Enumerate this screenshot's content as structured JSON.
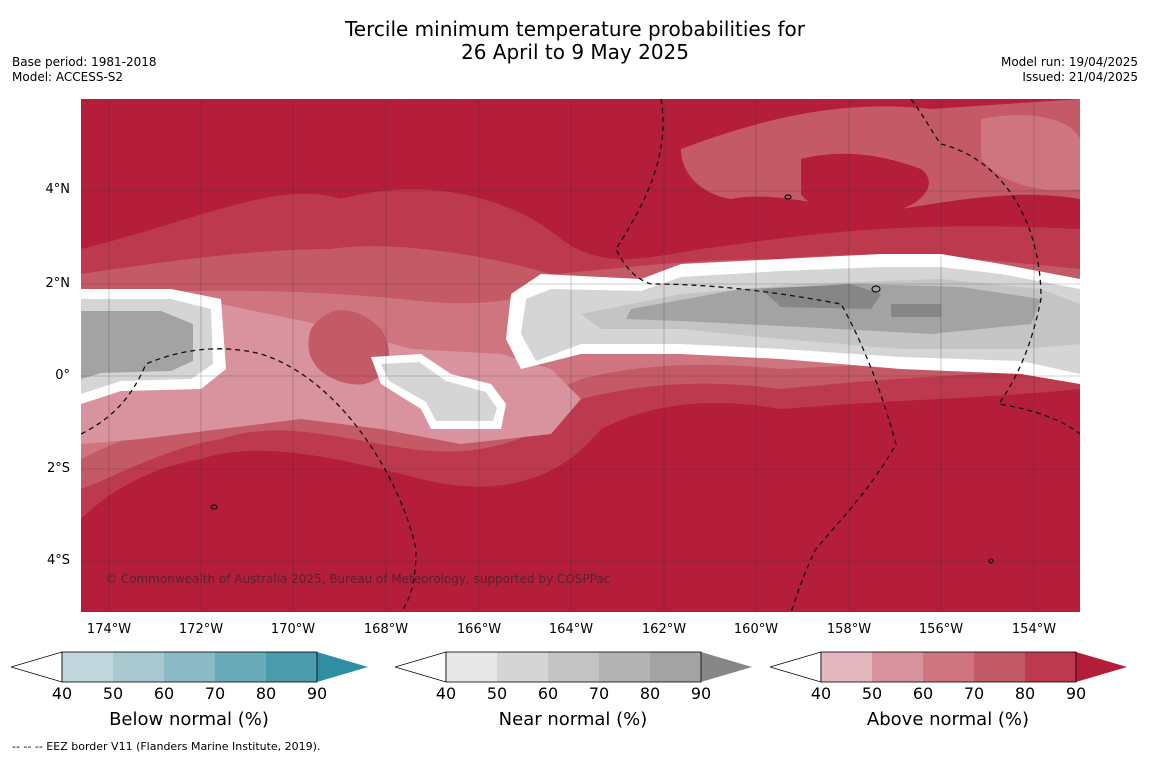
{
  "title": {
    "line1": "Tercile minimum temperature probabilities for",
    "line2": "26 April to 9 May 2025"
  },
  "meta": {
    "base_period": "Base period: 1981-2018",
    "model": "Model: ACCESS-S2",
    "model_run": "Model run: 19/04/2025",
    "issued": "Issued: 21/04/2025"
  },
  "map": {
    "latitudes": [
      "4°N",
      "2°N",
      "0°",
      "2°S",
      "4°S"
    ],
    "longitudes": [
      "174°W",
      "172°W",
      "170°W",
      "168°W",
      "166°W",
      "164°W",
      "162°W",
      "160°W",
      "158°W",
      "156°W",
      "154°W"
    ],
    "credit": "© Commonwealth of Australia 2025, Bureau of Meteorology, supported by COSPPac"
  },
  "colorbars": [
    {
      "label": "Below normal (%)",
      "ticks": [
        "40",
        "50",
        "60",
        "70",
        "80",
        "90"
      ],
      "colors": [
        "#bfd6dd",
        "#a8c8cf",
        "#8bb9c5",
        "#6aabb9",
        "#4a9bab",
        "#2e8fa3"
      ]
    },
    {
      "label": "Near normal (%)",
      "ticks": [
        "40",
        "50",
        "60",
        "70",
        "80",
        "90"
      ],
      "colors": [
        "#e8e8e8",
        "#d5d5d5",
        "#c4c4c4",
        "#b3b3b3",
        "#a3a3a3",
        "#868686"
      ]
    },
    {
      "label": "Above normal (%)",
      "ticks": [
        "40",
        "50",
        "60",
        "70",
        "80",
        "90"
      ],
      "colors": [
        "#e2b7be",
        "#d9939f",
        "#ce7580",
        "#c55a67",
        "#bd3a4e",
        "#b41e3a"
      ]
    }
  ],
  "footnote": "--  --  -- EEZ border V11 (Flanders Marine Institute, 2019)."
}
